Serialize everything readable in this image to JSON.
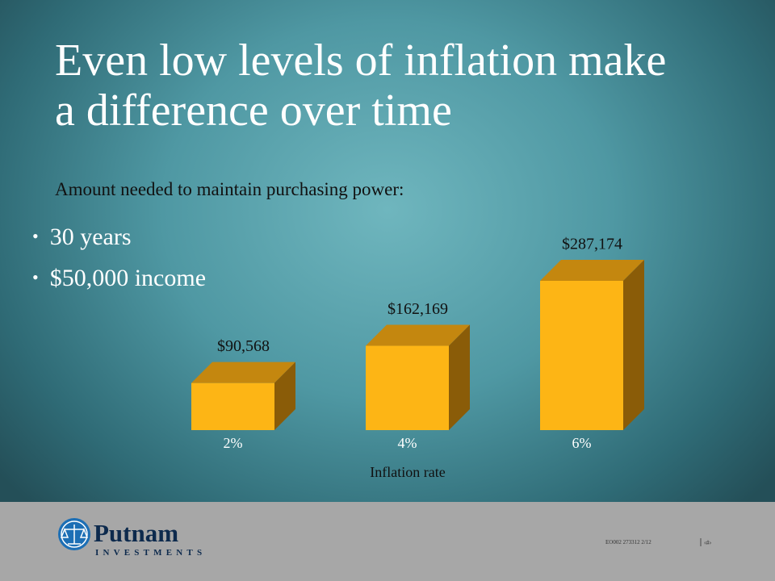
{
  "chart_data": {
    "type": "bar3d",
    "title": "Even low levels of inflation make a difference over time",
    "subtitle": "Amount needed to maintain purchasing power:",
    "bullets": [
      "30 years",
      "$50,000 income"
    ],
    "categories": [
      "2%",
      "4%",
      "6%"
    ],
    "values": [
      90568,
      162169,
      287174
    ],
    "value_labels": [
      "$90,568",
      "$162,169",
      "$287,174"
    ],
    "x_label": "Inflation rate",
    "color": "#fdb515"
  },
  "footer": {
    "logo_name": "Putnam",
    "logo_sub": "INVESTMENTS",
    "code": "EO002 273312 2/12",
    "page": "‹#›"
  }
}
